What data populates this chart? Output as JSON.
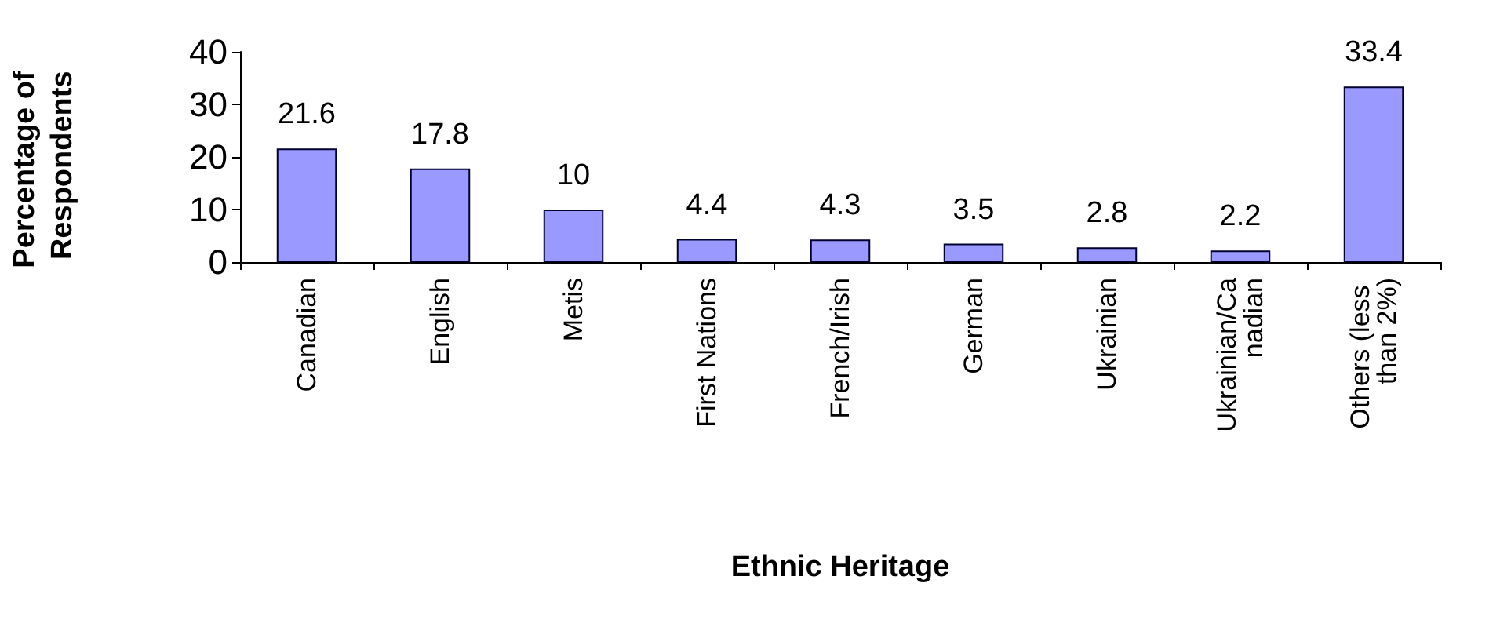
{
  "chart_data": {
    "type": "bar",
    "xlabel": "Ethnic Heritage",
    "ylabel": "Percentage of Respondents",
    "categories": [
      "Canadian",
      "English",
      "Metis",
      "First Nations",
      "French/Irish",
      "German",
      "Ukrainian",
      "Ukrainian/Canadian",
      "Others (less than 2%)"
    ],
    "values": [
      21.6,
      17.8,
      10,
      4.4,
      4.3,
      3.5,
      2.8,
      2.2,
      33.4
    ],
    "color": "#9999ff",
    "ylim": [
      0,
      40
    ],
    "yticks": [
      0,
      10,
      20,
      30,
      40
    ],
    "grid": false,
    "data_labels": true
  }
}
